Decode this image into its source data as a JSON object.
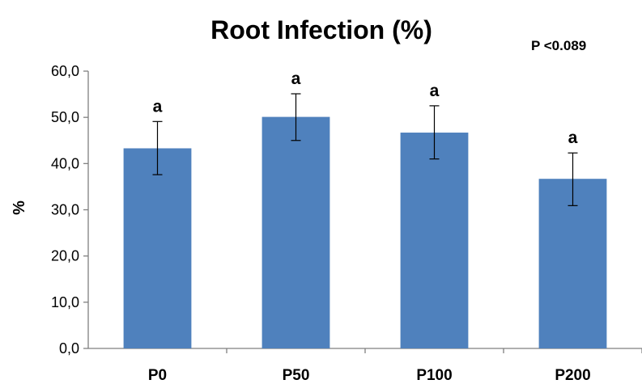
{
  "chart_data": {
    "type": "bar",
    "title": "Root Infection (%)",
    "annotation": "P <0.089",
    "ylabel": "%",
    "xlabel": "",
    "categories": [
      "P0",
      "P50",
      "P100",
      "P200"
    ],
    "values": [
      43.3,
      50.1,
      46.7,
      36.7
    ],
    "error_low": [
      37.6,
      45.0,
      41.0,
      30.9
    ],
    "error_high": [
      49.1,
      55.1,
      52.5,
      42.3
    ],
    "significance": [
      "a",
      "a",
      "a",
      "a"
    ],
    "ylim": [
      0,
      60
    ],
    "yticks": [
      "0,0",
      "10,0",
      "20,0",
      "30,0",
      "40,0",
      "50,0",
      "60,0"
    ],
    "grid": false,
    "bar_color": "#4f81bd"
  }
}
